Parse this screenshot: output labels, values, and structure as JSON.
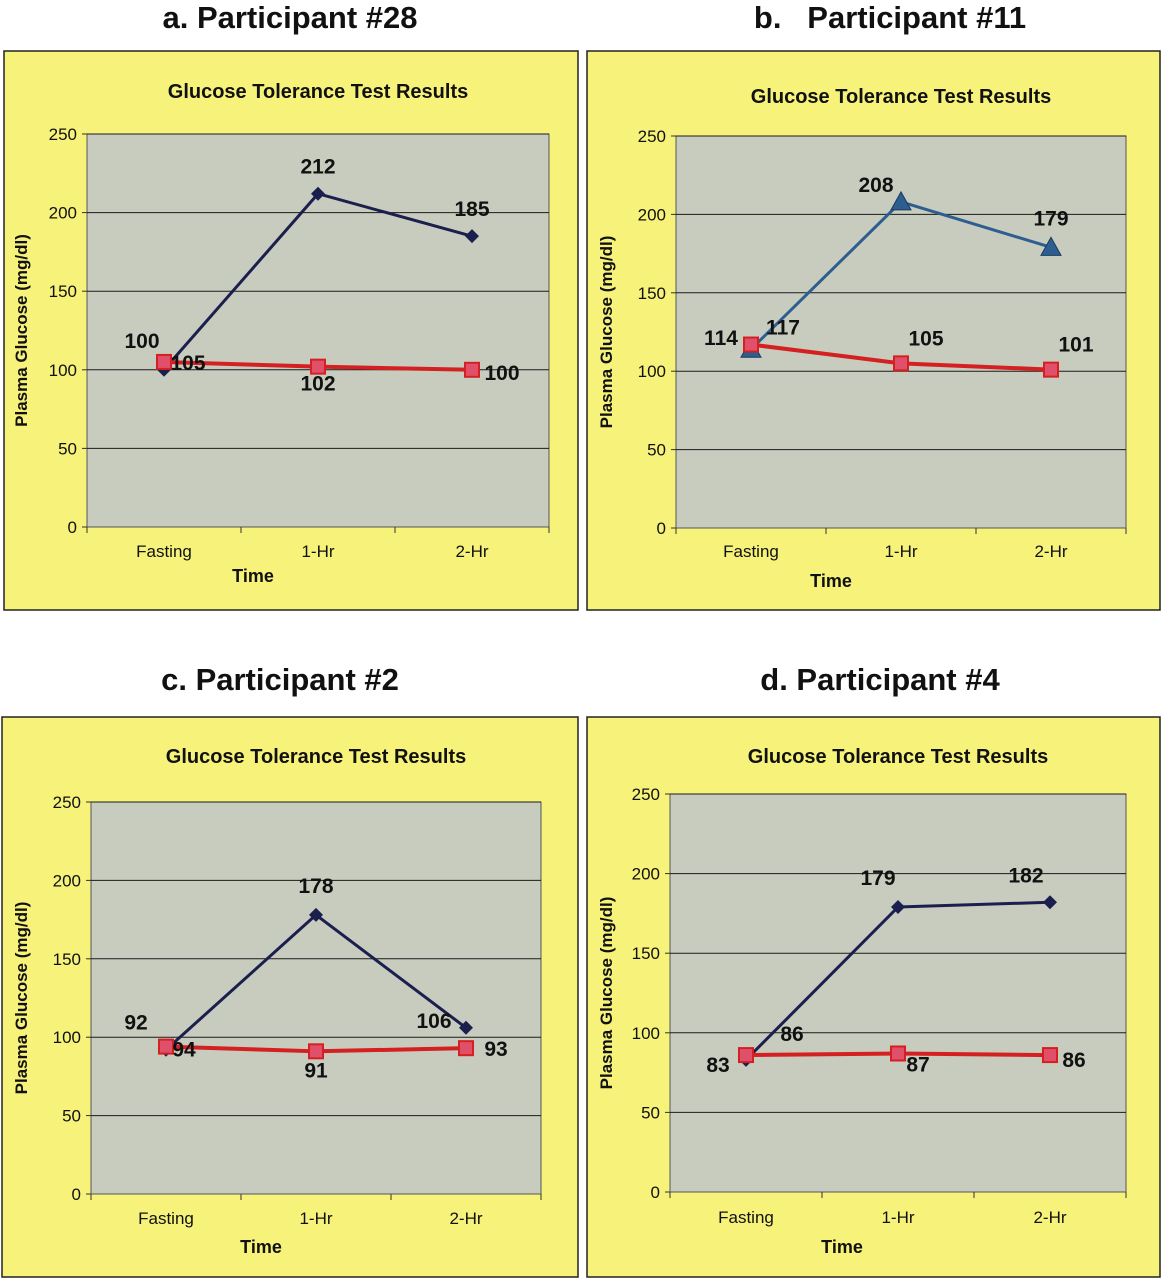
{
  "figure": {
    "colors": {
      "background": "#f6f27a",
      "plot_area": "#c8ccbf",
      "grid": "#1a1a1a",
      "dark_series": "#1b1f4d",
      "blue_series": "#2e5e8f",
      "red_series": "#d42020",
      "red_marker_fill": "#e0506a"
    }
  },
  "chart_data": [
    {
      "type": "line",
      "panel_heading": "a. Participant #28",
      "title": "Glucose Tolerance Test Results",
      "xlabel": "Time",
      "ylabel": "Plasma Glucose (mg/dl)",
      "categories": [
        "Fasting",
        "1-Hr",
        "2-Hr"
      ],
      "ylim": [
        0,
        250
      ],
      "yticks": [
        "0",
        "50",
        "100",
        "150",
        "200",
        "250"
      ],
      "grid": true,
      "legend": "none",
      "series": [
        {
          "values": [
            100,
            212,
            185
          ],
          "labels": [
            "100",
            "212",
            "185"
          ],
          "color": "#1b1f4d",
          "marker": "diamond"
        },
        {
          "values": [
            105,
            102,
            100
          ],
          "labels": [
            "105",
            "102",
            "100"
          ],
          "color": "#d42020",
          "marker": "square"
        }
      ]
    },
    {
      "type": "line",
      "panel_heading": "b.   Participant #11",
      "title": "Glucose Tolerance Test Results",
      "xlabel": "Time",
      "ylabel": "Plasma Glucose (mg/dl)",
      "categories": [
        "Fasting",
        "1-Hr",
        "2-Hr"
      ],
      "ylim": [
        0,
        250
      ],
      "yticks": [
        "0",
        "50",
        "100",
        "150",
        "200",
        "250"
      ],
      "grid": true,
      "legend": "none",
      "series": [
        {
          "values": [
            114,
            208,
            179
          ],
          "labels": [
            "114",
            "208",
            "179"
          ],
          "color": "#2e5e8f",
          "marker": "triangle"
        },
        {
          "values": [
            117,
            105,
            101
          ],
          "labels": [
            "117",
            "105",
            "101"
          ],
          "color": "#d42020",
          "marker": "square"
        }
      ]
    },
    {
      "type": "line",
      "panel_heading": "c. Participant #2",
      "title": "Glucose Tolerance Test Results",
      "xlabel": "Time",
      "ylabel": "Plasma Glucose (mg/dl)",
      "categories": [
        "Fasting",
        "1-Hr",
        "2-Hr"
      ],
      "ylim": [
        0,
        250
      ],
      "yticks": [
        "0",
        "50",
        "100",
        "150",
        "200",
        "250"
      ],
      "grid": true,
      "legend": "none",
      "series": [
        {
          "values": [
            92,
            178,
            106
          ],
          "labels": [
            "92",
            "178",
            "106"
          ],
          "color": "#1b1f4d",
          "marker": "diamond"
        },
        {
          "values": [
            94,
            91,
            93
          ],
          "labels": [
            "94",
            "91",
            "93"
          ],
          "color": "#d42020",
          "marker": "square"
        }
      ]
    },
    {
      "type": "line",
      "panel_heading": "d. Participant #4",
      "title": "Glucose Tolerance Test Results",
      "xlabel": "Time",
      "ylabel": "Plasma Glucose (mg/dl)",
      "categories": [
        "Fasting",
        "1-Hr",
        "2-Hr"
      ],
      "ylim": [
        0,
        250
      ],
      "yticks": [
        "0",
        "50",
        "100",
        "150",
        "200",
        "250"
      ],
      "grid": true,
      "legend": "none",
      "series": [
        {
          "values": [
            83,
            179,
            182
          ],
          "labels": [
            "83",
            "179",
            "182"
          ],
          "color": "#1b1f4d",
          "marker": "diamond"
        },
        {
          "values": [
            86,
            87,
            86
          ],
          "labels": [
            "86",
            "87",
            "86"
          ],
          "color": "#d42020",
          "marker": "square"
        }
      ]
    }
  ]
}
